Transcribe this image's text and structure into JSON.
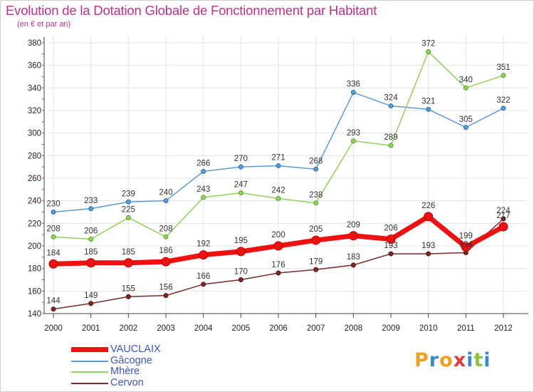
{
  "title": "Evolution de la Dotation Globale de Fonctionnement par Habitant",
  "subtitle": "(en € et par an)",
  "logo": {
    "letters": [
      "P",
      "r",
      "o",
      "x",
      "i",
      "t",
      "i"
    ],
    "colors": [
      "#f0a020",
      "#3a8ad0",
      "#f0a020",
      "#e03c3c",
      "#3a8ad0",
      "#8bc33a",
      "#3a8ad0"
    ]
  },
  "chart_data": {
    "type": "line",
    "x": [
      "2000",
      "2001",
      "2002",
      "2003",
      "2004",
      "2005",
      "2006",
      "2007",
      "2008",
      "2009",
      "2010",
      "2011",
      "2012"
    ],
    "ylim": [
      140,
      380
    ],
    "yticks": [
      140,
      160,
      180,
      200,
      220,
      240,
      260,
      280,
      300,
      320,
      340,
      360,
      380
    ],
    "grid": true,
    "legend_position": "bottom-left",
    "series": [
      {
        "name": "Gâcogne",
        "color": "#5b9bd5",
        "values": [
          230,
          233,
          239,
          240,
          266,
          270,
          271,
          268,
          336,
          324,
          321,
          305,
          322
        ]
      },
      {
        "name": "Mhère",
        "color": "#8fd35a",
        "values": [
          208,
          206,
          225,
          208,
          243,
          247,
          242,
          238,
          293,
          289,
          372,
          340,
          351
        ]
      },
      {
        "name": "Cervon",
        "color": "#7a2828",
        "values": [
          144,
          149,
          155,
          156,
          166,
          170,
          176,
          179,
          183,
          193,
          193,
          194,
          224
        ]
      },
      {
        "name": "VAUCLAIX",
        "color": "#ee1111",
        "values": [
          184,
          185,
          185,
          186,
          192,
          195,
          200,
          205,
          209,
          206,
          226,
          199,
          217
        ]
      }
    ],
    "data_labels": {
      "Gâcogne": [
        "230",
        "233",
        "239",
        "240",
        "266",
        "270",
        "271",
        "268",
        "336",
        "324",
        "321",
        "305",
        "322"
      ],
      "Mhère": [
        "208",
        "206",
        "225",
        "208",
        "243",
        "247",
        "242",
        "238",
        "293",
        "289",
        "372",
        "340",
        "351"
      ],
      "Cervon": [
        "144",
        "149",
        "155",
        "156",
        "166",
        "170",
        "176",
        "179",
        "183",
        "193",
        "193",
        "194",
        "224"
      ],
      "VAUCLAIX": [
        "184",
        "185",
        "185",
        "186",
        "192",
        "195",
        "200",
        "205",
        "209",
        "206",
        "226",
        "199",
        "217"
      ]
    }
  },
  "legend": [
    {
      "label": "VAUCLAIX",
      "color": "#ee1111",
      "thick": true
    },
    {
      "label": "Gâcogne",
      "color": "#5b9bd5",
      "thick": false
    },
    {
      "label": "Mhère",
      "color": "#8fd35a",
      "thick": false
    },
    {
      "label": "Cervon",
      "color": "#7a2828",
      "thick": false
    }
  ]
}
